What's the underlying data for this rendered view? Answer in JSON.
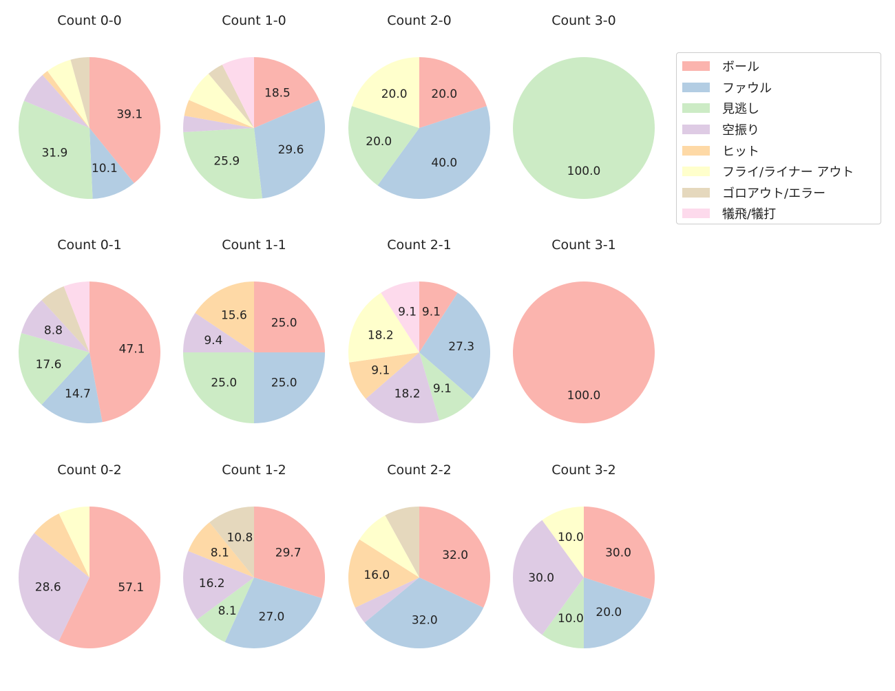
{
  "chart_data": {
    "type": "pie",
    "legend_position": "right",
    "categories": [
      "ボール",
      "ファウル",
      "見逃し",
      "空振り",
      "ヒット",
      "フライ/ライナー アウト",
      "ゴロアウト/エラー",
      "犠飛/犠打"
    ],
    "colors": [
      "#fbb4ae",
      "#b3cde3",
      "#ccebc5",
      "#decbe4",
      "#fed9a6",
      "#ffffcc",
      "#e5d8bd",
      "#fddaec"
    ],
    "pies": [
      {
        "title": "Count 0-0",
        "values": [
          39.1,
          10.1,
          31.9,
          7.2,
          1.4,
          5.8,
          4.3,
          0
        ]
      },
      {
        "title": "Count 1-0",
        "values": [
          18.5,
          29.6,
          25.9,
          3.7,
          3.7,
          7.4,
          3.7,
          7.4
        ]
      },
      {
        "title": "Count 2-0",
        "values": [
          20.0,
          40.0,
          20.0,
          0,
          0,
          20.0,
          0,
          0
        ]
      },
      {
        "title": "Count 3-0",
        "values": [
          0,
          0,
          100.0,
          0,
          0,
          0,
          0,
          0
        ]
      },
      {
        "title": "Count 0-1",
        "values": [
          47.1,
          14.7,
          17.6,
          8.8,
          0,
          0,
          5.9,
          5.9
        ]
      },
      {
        "title": "Count 1-1",
        "values": [
          25.0,
          25.0,
          25.0,
          9.4,
          15.6,
          0,
          0,
          0
        ]
      },
      {
        "title": "Count 2-1",
        "values": [
          9.1,
          27.3,
          9.1,
          18.2,
          9.1,
          18.2,
          0,
          9.1
        ]
      },
      {
        "title": "Count 3-1",
        "values": [
          100.0,
          0,
          0,
          0,
          0,
          0,
          0,
          0
        ]
      },
      {
        "title": "Count 0-2",
        "values": [
          57.1,
          0,
          0,
          28.6,
          7.1,
          7.1,
          0,
          0
        ]
      },
      {
        "title": "Count 1-2",
        "values": [
          29.7,
          27.0,
          8.1,
          16.2,
          8.1,
          0,
          10.8,
          0
        ]
      },
      {
        "title": "Count 2-2",
        "values": [
          32.0,
          32.0,
          0,
          4.0,
          16.0,
          8.0,
          8.0,
          0
        ]
      },
      {
        "title": "Count 3-2",
        "values": [
          30.0,
          20.0,
          10.0,
          30.0,
          0,
          10.0,
          0,
          0
        ]
      }
    ]
  }
}
